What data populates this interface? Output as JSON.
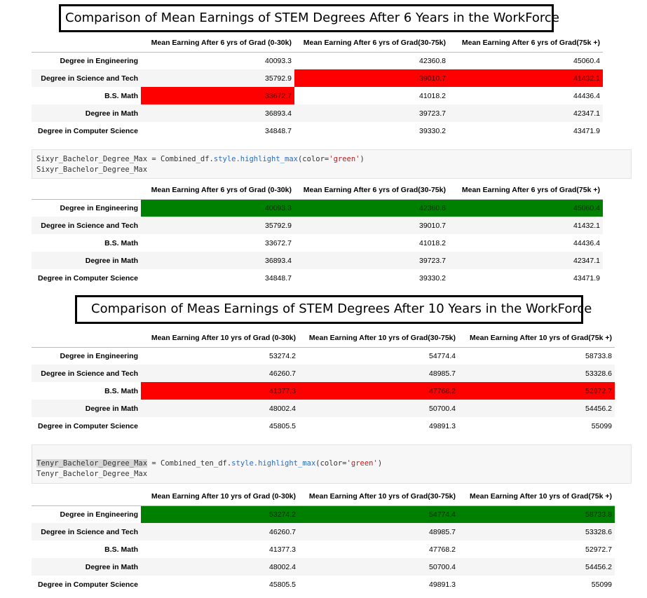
{
  "section1": {
    "title": "Comparison of Mean Earnings of STEM Degrees After 6 Years in the WorkForce",
    "columns": [
      "Mean Earning After 6 yrs of Grad (0-30k)",
      "Mean Earning After 6 yrs of Grad(30-75k)",
      "Mean Earning After 6 yrs of Grad(75k +)"
    ],
    "rows": [
      {
        "label": "Degree in Engineering",
        "values": [
          "40093.3",
          "42360.8",
          "45060.4"
        ]
      },
      {
        "label": "Degree in Science and Tech",
        "values": [
          "35792.9",
          "39010.7",
          "41432.1"
        ]
      },
      {
        "label": "B.S. Math",
        "values": [
          "33672.7",
          "41018.2",
          "44436.4"
        ]
      },
      {
        "label": "Degree in Math",
        "values": [
          "36893.4",
          "39723.7",
          "42347.1"
        ]
      },
      {
        "label": "Degree in Computer Science",
        "values": [
          "34848.7",
          "39330.2",
          "43471.9"
        ]
      }
    ]
  },
  "code1": {
    "var": "Sixyr_Bachelor_Degree_Max",
    "eq": " = ",
    "obj": "Combined_df.",
    "method": "style.highlight_max",
    "arg_open": "(color=",
    "arg_val": "'green'",
    "arg_close": ")",
    "line2": "Sixyr_Bachelor_Degree_Max"
  },
  "section2": {
    "title": "Comparison of Meas Earnings of STEM Degrees After 10 Years in the WorkForce",
    "columns": [
      "Mean Earning After 10 yrs of Grad (0-30k)",
      "Mean Earning After 10 yrs of Grad(30-75k)",
      "Mean Earning After 10 yrs of Grad(75k +)"
    ],
    "rows": [
      {
        "label": "Degree in Engineering",
        "values": [
          "53274.2",
          "54774.4",
          "58733.8"
        ]
      },
      {
        "label": "Degree in Science and Tech",
        "values": [
          "46260.7",
          "48985.7",
          "53328.6"
        ]
      },
      {
        "label": "B.S. Math",
        "values": [
          "41377.3",
          "47768.2",
          "52972.7"
        ]
      },
      {
        "label": "Degree in Math",
        "values": [
          "48002.4",
          "50700.4",
          "54456.2"
        ]
      },
      {
        "label": "Degree in Computer Science",
        "values": [
          "45805.5",
          "49891.3",
          "55099"
        ]
      }
    ]
  },
  "code2": {
    "var": "Tenyr_Bachelor_Degree_Max",
    "eq": " = ",
    "obj": "Combined_ten_df.",
    "method": "style.highlight_max",
    "arg_open": "(color=",
    "arg_val": "'green'",
    "arg_close": ")",
    "line2": "Tenyr_Bachelor_Degree_Max"
  },
  "highlight_colors": {
    "min": "#ff0000",
    "max": "#008000"
  }
}
